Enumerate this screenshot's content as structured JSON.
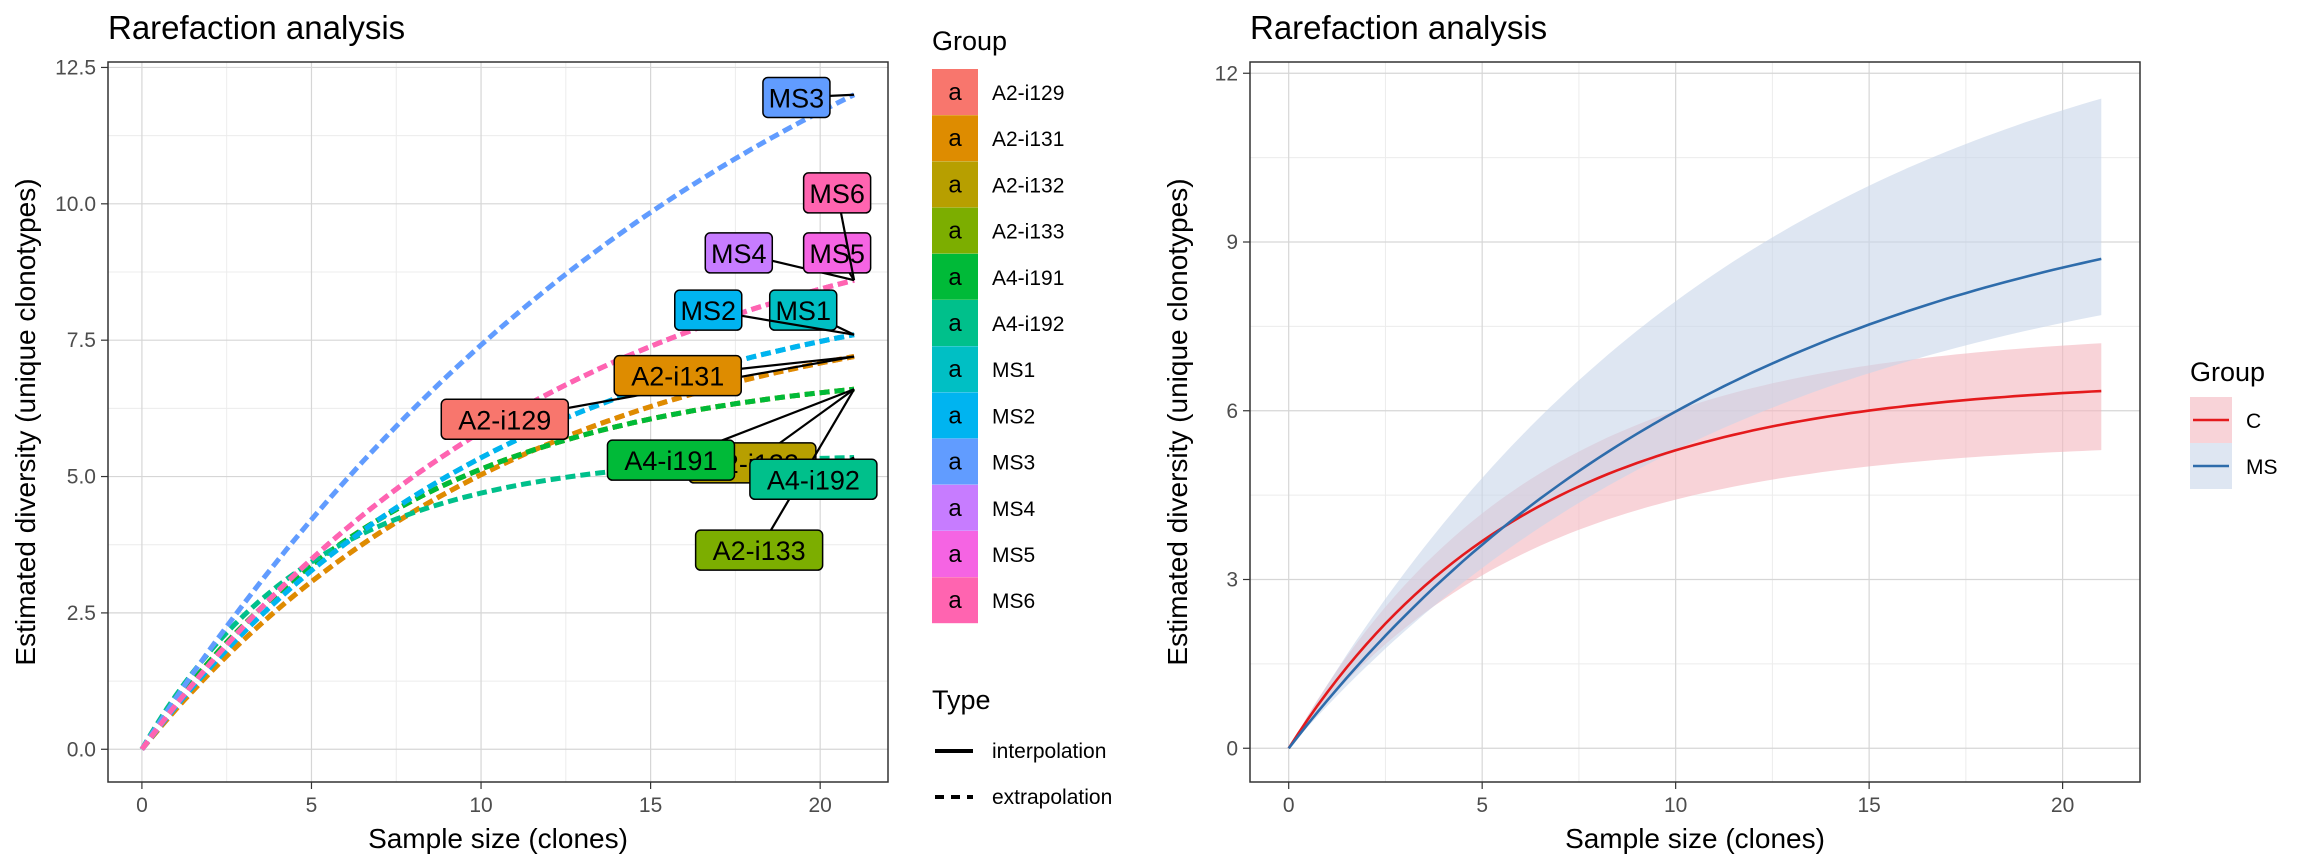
{
  "chart_data": [
    {
      "type": "line",
      "title": "Rarefaction analysis",
      "xlabel": "Sample size (clones)",
      "ylabel": "Estimated diversity (unique clonotypes)",
      "xlim": [
        -1,
        22
      ],
      "ylim": [
        -0.6,
        12.6
      ],
      "x_ticks": [
        0,
        5,
        10,
        15,
        20
      ],
      "x_tick_labels": [
        "0",
        "5",
        "10",
        "15",
        "20"
      ],
      "y_ticks": [
        0,
        2.5,
        5,
        7.5,
        10,
        12.5
      ],
      "y_tick_labels": [
        "0.0",
        "2.5",
        "5.0",
        "7.5",
        "10.0",
        "12.5"
      ],
      "grid": true,
      "legend_position": "right",
      "legend_group_title": "Group",
      "legend_type_title": "Type",
      "legend_type_entries": [
        "interpolation",
        "extrapolation"
      ],
      "legend_key_glyph": "a",
      "x_end": 21,
      "series": [
        {
          "name": "A2-i129",
          "color": "#F8766D",
          "asymptote": 8.6,
          "rate": 0.09,
          "end_value": 7.2,
          "label_at": [
            10.7,
            6.05
          ]
        },
        {
          "name": "A2-i131",
          "color": "#DE8C00",
          "asymptote": 8.6,
          "rate": 0.09,
          "end_value": 7.2,
          "label_at": [
            15.8,
            6.85
          ]
        },
        {
          "name": "A2-i132",
          "color": "#B79F00",
          "asymptote": 6.7,
          "rate": 0.13,
          "end_value": 6.6,
          "label_at": [
            18.0,
            5.25
          ]
        },
        {
          "name": "A2-i133",
          "color": "#7CAE00",
          "asymptote": 6.7,
          "rate": 0.13,
          "end_value": 6.6,
          "label_at": [
            18.2,
            3.65
          ]
        },
        {
          "name": "A4-i191",
          "color": "#00BA38",
          "asymptote": 6.7,
          "rate": 0.13,
          "end_value": 6.6,
          "label_at": [
            15.6,
            5.3
          ]
        },
        {
          "name": "A4-i192",
          "color": "#00C08B",
          "asymptote": 5.35,
          "rate": 0.2,
          "end_value": 5.35,
          "label_at": [
            19.8,
            4.95
          ]
        },
        {
          "name": "MS1",
          "color": "#00BFC4",
          "asymptote": 8.9,
          "rate": 0.092,
          "end_value": 7.6,
          "label_at": [
            19.5,
            8.05
          ]
        },
        {
          "name": "MS2",
          "color": "#00B4F0",
          "asymptote": 8.9,
          "rate": 0.092,
          "end_value": 7.6,
          "label_at": [
            16.7,
            8.05
          ]
        },
        {
          "name": "MS3",
          "color": "#619CFF",
          "asymptote": 17.5,
          "rate": 0.055,
          "end_value": 12.0,
          "label_at": [
            19.3,
            11.95
          ]
        },
        {
          "name": "MS4",
          "color": "#C77CFF",
          "asymptote": 10.5,
          "rate": 0.08,
          "end_value": 8.6,
          "label_at": [
            17.6,
            9.1
          ]
        },
        {
          "name": "MS5",
          "color": "#F564E3",
          "asymptote": 10.5,
          "rate": 0.08,
          "end_value": 8.6,
          "label_at": [
            20.5,
            9.1
          ]
        },
        {
          "name": "MS6",
          "color": "#FF64B0",
          "asymptote": 10.5,
          "rate": 0.08,
          "end_value": 8.6,
          "label_at": [
            20.5,
            10.2
          ]
        }
      ]
    },
    {
      "type": "line",
      "title": "Rarefaction analysis",
      "xlabel": "Sample size (clones)",
      "ylabel": "Estimated diversity (unique clonotypes)",
      "xlim": [
        -1,
        22
      ],
      "ylim": [
        -0.6,
        12.2
      ],
      "x_ticks": [
        0,
        5,
        10,
        15,
        20
      ],
      "x_tick_labels": [
        "0",
        "5",
        "10",
        "15",
        "20"
      ],
      "y_ticks": [
        0,
        3,
        6,
        9,
        12
      ],
      "y_tick_labels": [
        "0",
        "3",
        "6",
        "9",
        "12"
      ],
      "grid": true,
      "legend_position": "right",
      "legend_title": "Group",
      "x_end": 21,
      "series": [
        {
          "name": "C",
          "color": "#E41A1C",
          "fill": "#F4B6BE",
          "asymptote": 6.6,
          "rate": 0.165,
          "end_value": 6.35,
          "ci_end": [
            5.3,
            7.2
          ]
        },
        {
          "name": "MS",
          "color": "#2E6CAB",
          "fill": "#C8D6EA",
          "asymptote": 10.4,
          "rate": 0.085,
          "end_value": 8.7,
          "ci_end": [
            7.7,
            11.55
          ]
        }
      ]
    }
  ]
}
